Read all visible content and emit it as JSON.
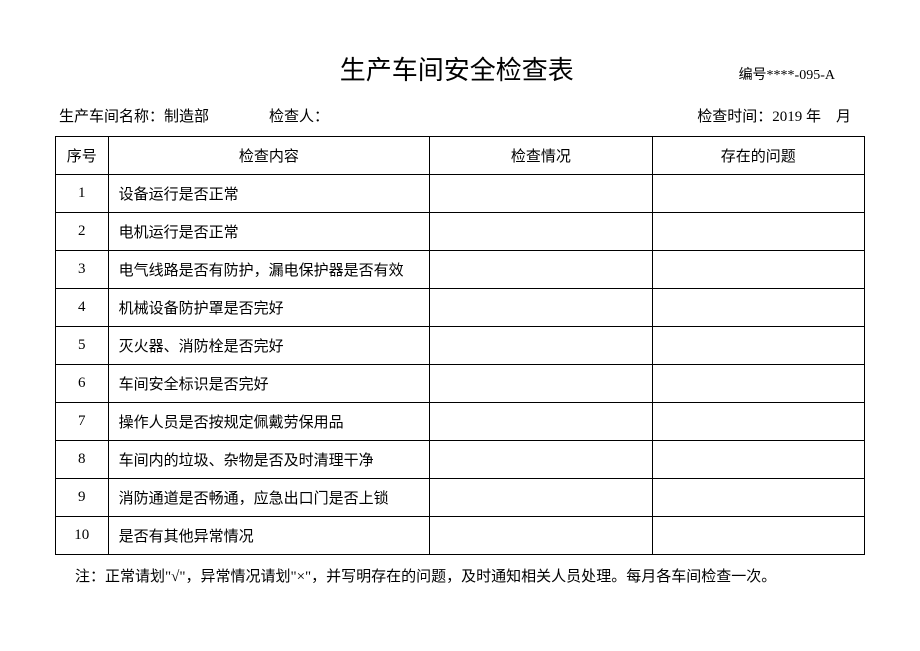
{
  "header": {
    "title": "生产车间安全检查表",
    "doc_number": "编号****-095-A"
  },
  "info": {
    "workshop_label": "生产车间名称：",
    "workshop_value": "制造部",
    "inspector_label": "检查人：",
    "inspect_time_label": "检查时间：",
    "inspect_time_value": "2019 年　月"
  },
  "table": {
    "columns": {
      "seq": "序号",
      "content": "检查内容",
      "status": "检查情况",
      "issues": "存在的问题"
    },
    "rows": [
      {
        "seq": "1",
        "content": "设备运行是否正常",
        "status": "",
        "issues": ""
      },
      {
        "seq": "2",
        "content": "电机运行是否正常",
        "status": "",
        "issues": ""
      },
      {
        "seq": "3",
        "content": "电气线路是否有防护，漏电保护器是否有效",
        "status": "",
        "issues": ""
      },
      {
        "seq": "4",
        "content": "机械设备防护罩是否完好",
        "status": "",
        "issues": ""
      },
      {
        "seq": "5",
        "content": "灭火器、消防栓是否完好",
        "status": "",
        "issues": ""
      },
      {
        "seq": "6",
        "content": "车间安全标识是否完好",
        "status": "",
        "issues": ""
      },
      {
        "seq": "7",
        "content": "操作人员是否按规定佩戴劳保用品",
        "status": "",
        "issues": ""
      },
      {
        "seq": "8",
        "content": "车间内的垃圾、杂物是否及时清理干净",
        "status": "",
        "issues": ""
      },
      {
        "seq": "9",
        "content": "消防通道是否畅通，应急出口门是否上锁",
        "status": "",
        "issues": ""
      },
      {
        "seq": "10",
        "content": "是否有其他异常情况",
        "status": "",
        "issues": ""
      }
    ]
  },
  "footer": {
    "note": "注：正常请划\"√\"，异常情况请划\"×\"，并写明存在的问题，及时通知相关人员处理。每月各车间检查一次。"
  }
}
